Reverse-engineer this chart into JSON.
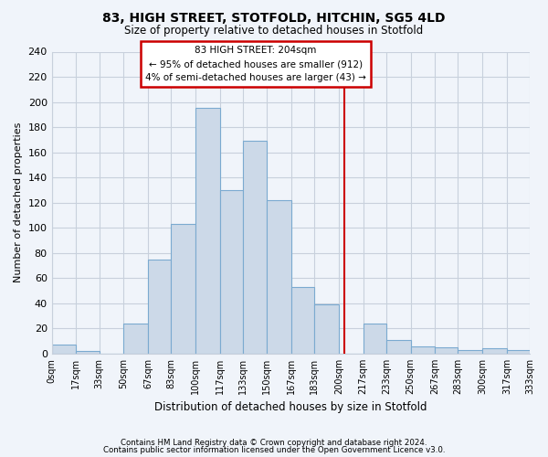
{
  "title": "83, HIGH STREET, STOTFOLD, HITCHIN, SG5 4LD",
  "subtitle": "Size of property relative to detached houses in Stotfold",
  "xlabel": "Distribution of detached houses by size in Stotfold",
  "ylabel": "Number of detached properties",
  "bar_color": "#ccd9e8",
  "bar_edgecolor": "#7baad0",
  "grid_color": "#c8d0dc",
  "vline_x": 204,
  "vline_color": "#cc0000",
  "annotation_title": "83 HIGH STREET: 204sqm",
  "annotation_line1": "← 95% of detached houses are smaller (912)",
  "annotation_line2": "4% of semi-detached houses are larger (43) →",
  "annotation_box_edgecolor": "#cc0000",
  "bin_edges": [
    0,
    17,
    33,
    50,
    67,
    83,
    100,
    117,
    133,
    150,
    167,
    183,
    200,
    217,
    233,
    250,
    267,
    283,
    300,
    317,
    333
  ],
  "bar_heights": [
    7,
    2,
    0,
    24,
    75,
    103,
    195,
    130,
    169,
    122,
    53,
    39,
    0,
    24,
    11,
    6,
    5,
    3,
    4,
    3
  ],
  "ylim": [
    0,
    240
  ],
  "yticks": [
    0,
    20,
    40,
    60,
    80,
    100,
    120,
    140,
    160,
    180,
    200,
    220,
    240
  ],
  "footnote1": "Contains HM Land Registry data © Crown copyright and database right 2024.",
  "footnote2": "Contains public sector information licensed under the Open Government Licence v3.0.",
  "bg_color": "#f0f4fa"
}
